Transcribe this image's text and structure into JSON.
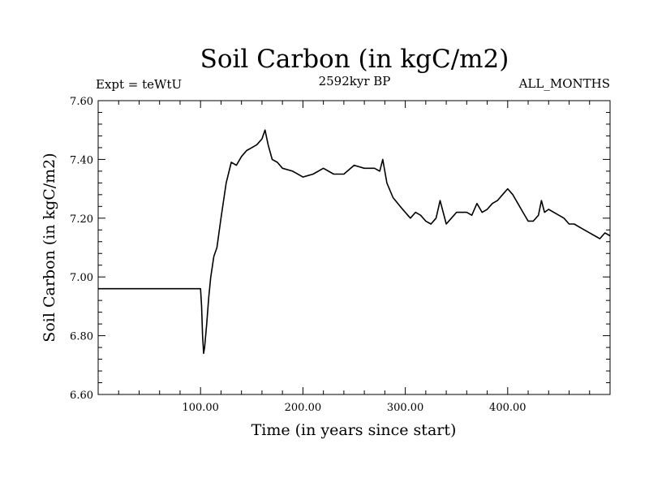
{
  "chart_data": {
    "type": "line",
    "title": "Soil Carbon (in kgC/m2)",
    "subtitle_left": "Expt = teWtU",
    "subtitle_center": "2592kyr BP",
    "subtitle_right": "ALL_MONTHS",
    "xlabel": "Time (in years since start)",
    "ylabel": "Soil Carbon (in kgC/m2)",
    "xlim": [
      0,
      500
    ],
    "ylim": [
      6.6,
      7.6
    ],
    "x_ticks": [
      "100.00",
      "200.00",
      "300.00",
      "400.00"
    ],
    "y_ticks": [
      "6.60",
      "6.80",
      "7.00",
      "7.20",
      "7.40",
      "7.60"
    ],
    "grid": false,
    "series": [
      {
        "color": "#000000",
        "x": [
          0,
          99,
          100,
          101,
          102,
          103,
          104,
          106,
          108,
          110,
          113,
          116,
          120,
          125,
          130,
          135,
          140,
          145,
          150,
          155,
          160,
          163,
          166,
          170,
          175,
          180,
          190,
          200,
          210,
          220,
          230,
          240,
          250,
          260,
          270,
          275,
          278,
          282,
          288,
          295,
          300,
          305,
          310,
          315,
          320,
          325,
          330,
          334,
          337,
          340,
          345,
          350,
          355,
          360,
          365,
          370,
          375,
          380,
          385,
          390,
          395,
          400,
          405,
          410,
          415,
          420,
          425,
          430,
          433,
          436,
          440,
          445,
          450,
          455,
          460,
          465,
          470,
          475,
          480,
          485,
          490,
          495,
          500
        ],
        "y": [
          6.96,
          6.96,
          6.96,
          6.9,
          6.8,
          6.74,
          6.76,
          6.84,
          6.93,
          7.0,
          7.07,
          7.1,
          7.2,
          7.32,
          7.39,
          7.38,
          7.41,
          7.43,
          7.44,
          7.45,
          7.47,
          7.5,
          7.45,
          7.4,
          7.39,
          7.37,
          7.36,
          7.34,
          7.35,
          7.37,
          7.35,
          7.35,
          7.38,
          7.37,
          7.37,
          7.36,
          7.4,
          7.32,
          7.27,
          7.24,
          7.22,
          7.2,
          7.22,
          7.21,
          7.19,
          7.18,
          7.2,
          7.26,
          7.22,
          7.18,
          7.2,
          7.22,
          7.22,
          7.22,
          7.21,
          7.25,
          7.22,
          7.23,
          7.25,
          7.26,
          7.28,
          7.3,
          7.28,
          7.25,
          7.22,
          7.19,
          7.19,
          7.21,
          7.26,
          7.22,
          7.23,
          7.22,
          7.21,
          7.2,
          7.18,
          7.18,
          7.17,
          7.16,
          7.15,
          7.14,
          7.13,
          7.15,
          7.14
        ]
      }
    ]
  }
}
